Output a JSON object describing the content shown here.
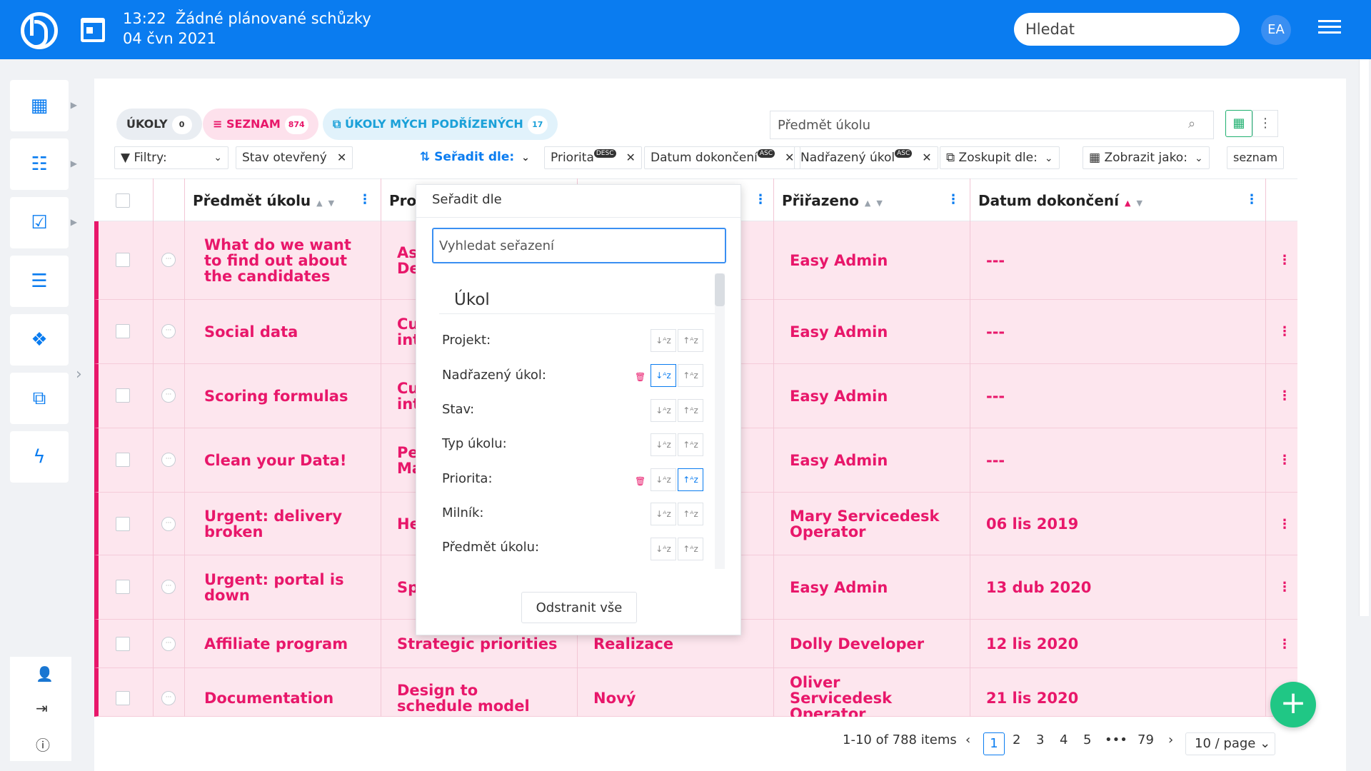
{
  "header": {
    "time": "13:22",
    "meetings": "Žádné plánované schůzky",
    "date": "04 čvn 2021",
    "search_placeholder": "Hledat",
    "avatar": "EA",
    "brand_color": "#0a7cf0"
  },
  "left_sidebar": {
    "items": [
      {
        "icon": "dashboard-icon"
      },
      {
        "icon": "hierarchy-icon"
      },
      {
        "icon": "clipboard-check-icon"
      },
      {
        "icon": "list-icon"
      },
      {
        "icon": "dropbox-icon"
      },
      {
        "icon": "grid-frame-icon"
      },
      {
        "icon": "lightning-icon"
      }
    ],
    "bottom": [
      "add-user-icon",
      "sign-in-icon",
      "info-icon"
    ]
  },
  "right_sidebar": [
    "flag-icon",
    "lightbulb-icon",
    "checklist-icon"
  ],
  "tabs": [
    {
      "label": "ÚKOLY",
      "count": "0"
    },
    {
      "label": "SEZNAM",
      "count": "874"
    },
    {
      "label": "ÚKOLY MÝCH PODŘÍZENÝCH",
      "count": "17"
    }
  ],
  "subject_search_placeholder": "Předmět úkolu",
  "filters": {
    "filters_label": "Filtry:",
    "status_filter": "Stav otevřený",
    "sort_label": "Seřadit dle:",
    "sort_tags": [
      {
        "label": "Priorita",
        "badge": "DESC"
      },
      {
        "label": "Datum dokončení",
        "badge": "ASC"
      },
      {
        "label": "Nadřazený úkol",
        "badge": "ASC"
      }
    ],
    "group_label": "Zoskupit dle:",
    "display_label": "Zobrazit jako:",
    "display_value": "seznam"
  },
  "table": {
    "headers": {
      "subject": "Předmět úkolu",
      "project": "Pro",
      "assigned": "Přiřazeno",
      "due": "Datum dokončení"
    },
    "rows": [
      {
        "subject": "What do we want to find out about the candidates",
        "project": "As De",
        "status": "",
        "assigned": "Easy Admin",
        "due": "---"
      },
      {
        "subject": "Social data",
        "project": "Cu int",
        "status": "",
        "assigned": "Easy Admin",
        "due": "---"
      },
      {
        "subject": "Scoring formulas",
        "project": "Cu int",
        "status": "",
        "assigned": "Easy Admin",
        "due": "---"
      },
      {
        "subject": "Clean your Data!",
        "project": "Pe Ma",
        "status": "",
        "assigned": "Easy Admin",
        "due": "---"
      },
      {
        "subject": "Urgent: delivery broken",
        "project": "He",
        "status": "",
        "assigned": "Mary Servicedesk Operator",
        "due": "06 lis 2019"
      },
      {
        "subject": "Urgent: portal is down",
        "project": "Sp",
        "status": "",
        "assigned": "Easy Admin",
        "due": "13 dub 2020"
      },
      {
        "subject": "Affiliate program",
        "project": "Strategic priorities",
        "status": "Realizace",
        "assigned": "Dolly Developer",
        "due": "12 lis 2020"
      },
      {
        "subject": "Documentation",
        "project": "Design to schedule model",
        "status": "Nový",
        "assigned": "Oliver Servicedesk Operator",
        "due": "21 lis 2020"
      }
    ]
  },
  "pagination": {
    "summary": "1-10 of 788 items",
    "pages": [
      "1",
      "2",
      "3",
      "4",
      "5",
      "•••",
      "79"
    ],
    "page_size": "10 / page"
  },
  "sort_dropdown": {
    "title": "Seřadit dle",
    "search_placeholder": "Vyhledat seřazení",
    "group": "Úkol",
    "options": [
      {
        "label": "Projekt:",
        "active": "none"
      },
      {
        "label": "Nadřazený úkol:",
        "active": "asc"
      },
      {
        "label": "Stav:",
        "active": "none"
      },
      {
        "label": "Typ úkolu:",
        "active": "none"
      },
      {
        "label": "Priorita:",
        "active": "desc"
      },
      {
        "label": "Milník:",
        "active": "none"
      },
      {
        "label": "Předmět úkolu:",
        "active": "none"
      }
    ],
    "clear_label": "Odstranit vše"
  }
}
